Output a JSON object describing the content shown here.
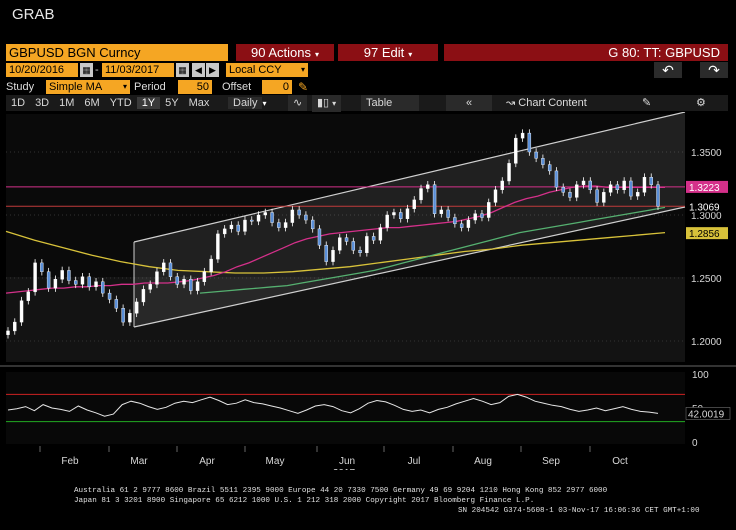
{
  "window": {
    "title": "GRAB"
  },
  "toolbar": {
    "ticker": "GBPUSD BGN Curncy",
    "actions": "90 Actions",
    "edit": "97 Edit",
    "graph_title": "G 80: TT: GBPUSD"
  },
  "range": {
    "start_date": "10/20/2016",
    "end_date": "11/03/2017",
    "currency": "Local CCY"
  },
  "study": {
    "label": "Study",
    "value": "Simple MA",
    "period_label": "Period",
    "period": "50",
    "offset_label": "Offset",
    "offset": "0"
  },
  "tabs": {
    "periods": [
      "1D",
      "3D",
      "1M",
      "6M",
      "YTD",
      "1Y",
      "5Y",
      "Max"
    ],
    "selected": "1Y",
    "frequency": "Daily",
    "table": "Table",
    "chart_content": "Chart Content"
  },
  "colors": {
    "ticker_bg": "#f5a623",
    "action_bg": "#8b0f14",
    "ma50": "#d4308a",
    "ma100": "#55b070",
    "ma200": "#d8c23a",
    "last_price_label": "#ffffff",
    "rsi_upper": "#cc2222",
    "rsi_lower": "#22aa22"
  },
  "chart_data": {
    "type": "candlestick",
    "x_labels": [
      "Feb",
      "Mar",
      "Apr",
      "May",
      "Jun",
      "Jul",
      "Aug",
      "Sep",
      "Oct"
    ],
    "year_label": "2017",
    "price_ticks": [
      "1.3500",
      "1.3000",
      "1.2500",
      "1.2000"
    ],
    "rsi_ticks": [
      "100",
      "50",
      "0"
    ],
    "price_labels": {
      "ma50": "1.3223",
      "last": "1.3069",
      "ma200": "1.2856",
      "rsi": "42.0019"
    },
    "price_series": [
      1.208,
      1.215,
      1.232,
      1.239,
      1.262,
      1.255,
      1.242,
      1.249,
      1.256,
      1.248,
      1.245,
      1.251,
      1.243,
      1.247,
      1.238,
      1.233,
      1.226,
      1.215,
      1.222,
      1.231,
      1.241,
      1.245,
      1.255,
      1.262,
      1.251,
      1.245,
      1.249,
      1.24,
      1.247,
      1.255,
      1.265,
      1.285,
      1.289,
      1.292,
      1.287,
      1.296,
      1.295,
      1.3,
      1.302,
      1.294,
      1.29,
      1.294,
      1.304,
      1.3,
      1.296,
      1.289,
      1.276,
      1.263,
      1.272,
      1.282,
      1.279,
      1.272,
      1.27,
      1.283,
      1.28,
      1.29,
      1.3,
      1.302,
      1.297,
      1.305,
      1.312,
      1.321,
      1.324,
      1.301,
      1.304,
      1.298,
      1.293,
      1.29,
      1.296,
      1.301,
      1.298,
      1.31,
      1.32,
      1.327,
      1.341,
      1.361,
      1.365,
      1.35,
      1.345,
      1.34,
      1.335,
      1.322,
      1.318,
      1.314,
      1.324,
      1.327,
      1.32,
      1.31,
      1.318,
      1.324,
      1.32,
      1.327,
      1.315,
      1.318,
      1.33,
      1.324,
      1.307
    ],
    "ma50_series": [
      1.238,
      1.239,
      1.24,
      1.241,
      1.242,
      1.242,
      1.243,
      1.243,
      1.244,
      1.244,
      1.245,
      1.245,
      1.246,
      1.246,
      1.246,
      1.247,
      1.248,
      1.25,
      1.252,
      1.255,
      1.259,
      1.262,
      1.266,
      1.27,
      1.274,
      1.278,
      1.281,
      1.283,
      1.285,
      1.286,
      1.287,
      1.288,
      1.289,
      1.29,
      1.29,
      1.291,
      1.292,
      1.293,
      1.294,
      1.295,
      1.297,
      1.299,
      1.302,
      1.306,
      1.31,
      1.313,
      1.315,
      1.318,
      1.32,
      1.322,
      1.323,
      1.323,
      1.322,
      1.322,
      1.322,
      1.322,
      1.322,
      1.322
    ],
    "ma100_series": [
      1.238,
      1.239,
      1.24,
      1.241,
      1.242,
      1.243,
      1.244,
      1.246,
      1.248,
      1.25,
      1.252,
      1.254,
      1.256,
      1.259,
      1.262,
      1.265,
      1.268,
      1.271,
      1.274,
      1.277,
      1.28,
      1.283,
      1.286,
      1.288,
      1.29,
      1.292,
      1.294,
      1.296,
      1.298,
      1.3,
      1.302,
      1.304,
      1.306
    ],
    "ma200_series": [
      1.287,
      1.28,
      1.274,
      1.268,
      1.263,
      1.259,
      1.256,
      1.255,
      1.254,
      1.254,
      1.255,
      1.257,
      1.259,
      1.262,
      1.265,
      1.268,
      1.271,
      1.273,
      1.276,
      1.278,
      1.28,
      1.282,
      1.284,
      1.286
    ],
    "rsi_series": [
      47,
      49,
      52,
      46,
      55,
      50,
      48,
      45,
      53,
      47,
      43,
      38,
      41,
      55,
      60,
      57,
      52,
      48,
      51,
      57,
      60,
      58,
      62,
      66,
      61,
      55,
      57,
      62,
      58,
      56,
      53,
      50,
      46,
      42,
      47,
      53,
      55,
      52,
      46,
      43,
      49,
      57,
      61,
      59,
      54,
      48,
      45,
      47,
      43,
      48,
      51,
      56,
      60,
      64,
      60,
      55,
      58,
      67,
      70,
      66,
      60,
      57,
      54,
      52,
      48,
      45,
      47,
      50,
      46,
      49,
      52,
      48,
      45,
      44,
      42
    ]
  },
  "footer": {
    "line1": "Australia 61 2 9777 8600 Brazil 5511 2395 9000 Europe 44 20 7330 7500 Germany 49 69 9204 1210 Hong Kong 852 2977 6000",
    "line2": "Japan 81 3 3201 8900         Singapore 65 6212 1000         U.S. 1 212 318 2000         Copyright 2017 Bloomberg Finance L.P.",
    "line3": "SN 204542 G374-5608-1 03-Nov-17 16:06:36 CET  GMT+1:00"
  }
}
